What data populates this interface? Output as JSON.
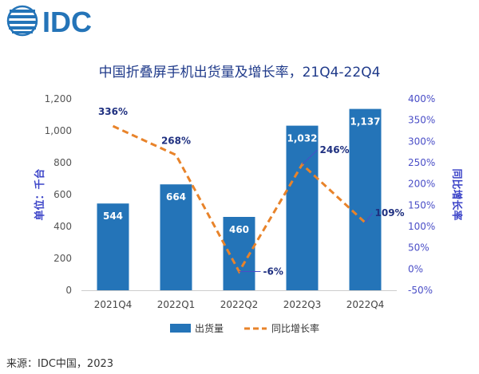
{
  "logo": {
    "text": "IDC",
    "color": "#2474b8"
  },
  "source": "来源：IDC中国，2023",
  "chart_data": {
    "type": "bar+line",
    "title": "中国折叠屏手机出货量及增长率，21Q4-22Q4",
    "categories": [
      "2021Q4",
      "2022Q1",
      "2022Q2",
      "2022Q3",
      "2022Q4"
    ],
    "series": [
      {
        "name": "出货量",
        "type": "bar",
        "axis": "left",
        "values": [
          544,
          664,
          460,
          1032,
          1137
        ],
        "labels": [
          "544",
          "664",
          "460",
          "1,032",
          "1,137"
        ],
        "color": "#2474b8"
      },
      {
        "name": "同比增长率",
        "type": "line",
        "axis": "right",
        "style": "dashed",
        "values": [
          336,
          268,
          -6,
          246,
          109
        ],
        "labels": [
          "336%",
          "268%",
          "-6%",
          "246%",
          "109%"
        ],
        "color": "#e8832a"
      }
    ],
    "ylabel_left": "单位：千台",
    "ylabel_right": "同比增长率",
    "ylim_left": [
      0,
      1200
    ],
    "yticks_left": [
      "0",
      "200",
      "400",
      "600",
      "800",
      "1,000",
      "1,200"
    ],
    "ylim_right": [
      -50,
      400
    ],
    "yticks_right": [
      "-50%",
      "0%",
      "50%",
      "100%",
      "150%",
      "200%",
      "250%",
      "300%",
      "350%",
      "400%"
    ],
    "legend_position": "bottom",
    "grid": false
  }
}
